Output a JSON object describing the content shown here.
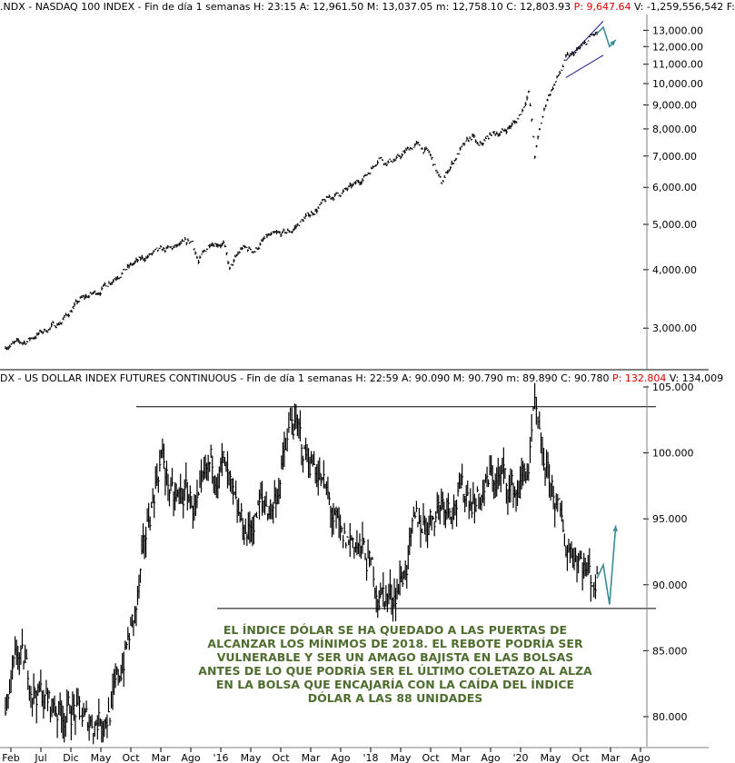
{
  "panels": [
    {
      "id": "ndx",
      "header": [
        {
          "text": ".NDX - NASDAQ 100 INDEX - Fin de día 1 semanas  H: 23:15  A: 12,961.50  M: 13,037.05  m: 12,758.10  C: 12,803.93  ",
          "color": "#000000"
        },
        {
          "text": "P: 9,647.64",
          "color": "#e00000"
        },
        {
          "text": "  V: -1,259,556,542  F:",
          "color": "#000000"
        }
      ]
    },
    {
      "id": "dx",
      "header": [
        {
          "text": "DX - US DOLLAR INDEX FUTURES CONTINUOUS - Fin de día 1 semanas  H: 22:59  A: 90.090  M: 90.790  m: 89.890  C: 90.780  ",
          "color": "#000000"
        },
        {
          "text": "P: 132.804",
          "color": "#e00000"
        },
        {
          "text": "  V: 134,009",
          "color": "#000000"
        }
      ]
    }
  ],
  "annotation_lines": [
    "EL ÍNDICE DÓLAR SE HA QUEDADO A LAS PUERTAS DE",
    "ALCANZAR LOS MÍNIMOS DE 2018. EL REBOTE PODRÍA SER",
    "VULNERABLE Y SER UN AMAGO BAJISTA EN LAS BOLSAS",
    "ANTES DE LO QUE PODRÍA SER EL ÚLTIMO COLETAZO AL ALZA",
    "EN LA BOLSA QUE ENCAJARÍA CON LA CAÍDA DEL ÍNDICE",
    "DÓLAR A LAS 88 UNIDADES"
  ],
  "colors": {
    "price": "#000000",
    "projection": "#3c8c96",
    "annotation": "#4f6d2f",
    "highlight": "#e00000"
  },
  "chart_data": [
    {
      "type": "line",
      "title": ".NDX - NASDAQ 100 INDEX",
      "scale": "log",
      "ylim": [
        2500,
        13800
      ],
      "yticks": [
        "13,000.00",
        "12,000.00",
        "11,000.00",
        "10,000.00",
        "9,000.00",
        "8,000.00",
        "7,000.00",
        "6,000.00",
        "5,000.00",
        "4,000.00",
        "3,000.00"
      ],
      "ytick_values": [
        13000,
        12000,
        11000,
        10000,
        9000,
        8000,
        7000,
        6000,
        5000,
        4000,
        3000
      ],
      "x": [
        "2013-02",
        "2013-05",
        "2013-08",
        "2013-11",
        "2014-02",
        "2014-05",
        "2014-08",
        "2014-11",
        "2015-02",
        "2015-05",
        "2015-08",
        "2015-09",
        "2015-11",
        "2016-01",
        "2016-02",
        "2016-04",
        "2016-06",
        "2016-08",
        "2016-10",
        "2016-12",
        "2017-02",
        "2017-04",
        "2017-06",
        "2017-08",
        "2017-10",
        "2017-12",
        "2018-01",
        "2018-02",
        "2018-03",
        "2018-05",
        "2018-07",
        "2018-08",
        "2018-10",
        "2018-12",
        "2019-01",
        "2019-03",
        "2019-05",
        "2019-06",
        "2019-08",
        "2019-10",
        "2019-12",
        "2020-01",
        "2020-02",
        "2020-03",
        "2020-04",
        "2020-05",
        "2020-07",
        "2020-08",
        "2020-09",
        "2020-10",
        "2020-11",
        "2020-12",
        "2021-01"
      ],
      "values": [
        2750,
        2800,
        2950,
        3100,
        3450,
        3600,
        3900,
        4150,
        4350,
        4450,
        4600,
        4150,
        4600,
        4550,
        4000,
        4450,
        4400,
        4700,
        4750,
        4850,
        5150,
        5400,
        5700,
        5850,
        6050,
        6400,
        6650,
        7000,
        6800,
        6900,
        7300,
        7400,
        7100,
        6100,
        6500,
        7200,
        7700,
        7300,
        7800,
        7900,
        8300,
        8800,
        9600,
        7000,
        8200,
        9300,
        10500,
        11300,
        11500,
        11800,
        12100,
        12600,
        12800
      ],
      "projection": {
        "x": [
          "2021-01",
          "2021-02",
          "2021-03",
          "2021-04"
        ],
        "values": [
          12800,
          13200,
          12000,
          12400
        ]
      },
      "channel": {
        "upper": [
          [
            11200,
            "2020-08"
          ],
          [
            13600,
            "2021-02"
          ]
        ],
        "lower": [
          [
            10300,
            "2020-08"
          ],
          [
            11500,
            "2021-02"
          ]
        ]
      }
    },
    {
      "type": "line",
      "title": "DX - US DOLLAR INDEX FUTURES CONTINUOUS",
      "ylim": [
        78,
        105
      ],
      "yticks": [
        "105.000",
        "100.000",
        "95.000",
        "90.000",
        "85.000",
        "80.000"
      ],
      "ytick_values": [
        105,
        100,
        95,
        90,
        85,
        80
      ],
      "xticks": [
        "Feb",
        "Jul",
        "Dic",
        "May",
        "Oct",
        "Mar",
        "Ago",
        "'16",
        "May",
        "Oct",
        "Mar",
        "Ago",
        "'18",
        "May",
        "Oct",
        "Mar",
        "Ago",
        "'20",
        "May",
        "Oct",
        "Mar",
        "Ago"
      ],
      "x": [
        "2013-02",
        "2013-04",
        "2013-07",
        "2013-09",
        "2013-11",
        "2014-01",
        "2014-03",
        "2014-05",
        "2014-07",
        "2014-09",
        "2014-11",
        "2015-01",
        "2015-03",
        "2015-05",
        "2015-07",
        "2015-09",
        "2015-11",
        "2016-01",
        "2016-03",
        "2016-05",
        "2016-07",
        "2016-09",
        "2016-11",
        "2016-12",
        "2017-02",
        "2017-04",
        "2017-06",
        "2017-08",
        "2017-10",
        "2017-12",
        "2018-02",
        "2018-04",
        "2018-06",
        "2018-08",
        "2018-10",
        "2018-12",
        "2019-02",
        "2019-04",
        "2019-06",
        "2019-08",
        "2019-10",
        "2019-12",
        "2020-02",
        "2020-03",
        "2020-04",
        "2020-06",
        "2020-08",
        "2020-10",
        "2020-12",
        "2021-01"
      ],
      "values": [
        80,
        84.5,
        82,
        81,
        80.5,
        80.5,
        79.5,
        80,
        80.5,
        84.5,
        88,
        95,
        100,
        96,
        97,
        95.5,
        99,
        99,
        95,
        94,
        96,
        96,
        100,
        102.5,
        100,
        99,
        96,
        93,
        93.5,
        92,
        89.5,
        89,
        91,
        94.5,
        95,
        96.5,
        96.5,
        97,
        96.5,
        98,
        98,
        97,
        99,
        103,
        99.5,
        97,
        93,
        92.5,
        90.5,
        90.5
      ],
      "projection": {
        "x": [
          "2021-01",
          "2021-02",
          "2021-03",
          "2021-04"
        ],
        "values": [
          90.5,
          91.5,
          88.5,
          94.5
        ]
      },
      "hlines": [
        103.5,
        88.2
      ]
    }
  ]
}
